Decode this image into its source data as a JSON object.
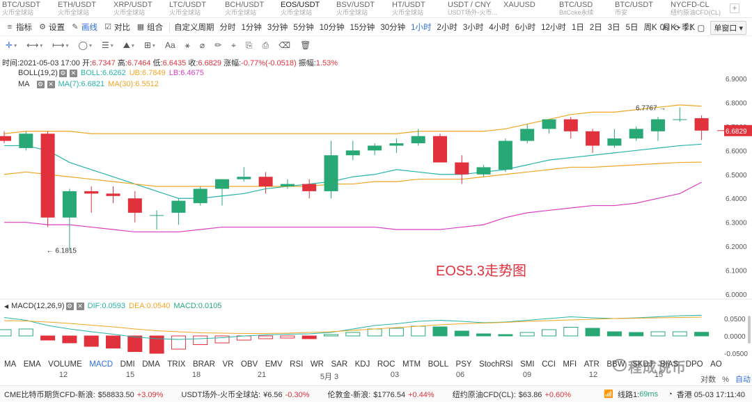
{
  "symbols": [
    {
      "name": "BTC/USDT",
      "sub": "火币全球站"
    },
    {
      "name": "ETH/USDT",
      "sub": "火币全球站"
    },
    {
      "name": "XRP/USDT",
      "sub": "火币全球站"
    },
    {
      "name": "LTC/USDT",
      "sub": "火币全球站"
    },
    {
      "name": "BCH/USDT",
      "sub": "火币全球站"
    },
    {
      "name": "EOS/USDT",
      "sub": "火币全球站",
      "active": true
    },
    {
      "name": "BSV/USDT",
      "sub": "火币全球站"
    },
    {
      "name": "HT/USDT",
      "sub": "火币全球站"
    },
    {
      "name": "USDT / CNY",
      "sub": "USDT场外-火币..."
    },
    {
      "name": "XAUUSD",
      "sub": ""
    },
    {
      "name": "BTC/USD",
      "sub": "BitCoke永续"
    },
    {
      "name": "BTC/USDT",
      "sub": "币安"
    },
    {
      "name": "NYCFD-CL",
      "sub": "纽约原油CFD(CL)"
    }
  ],
  "symbols_add": "+",
  "toolbar": {
    "tools": [
      {
        "icon": "≡",
        "label": "指标",
        "name": "indicators"
      },
      {
        "icon": "⚙",
        "label": "设置",
        "name": "settings"
      },
      {
        "icon": "✎",
        "label": "画线",
        "name": "draw",
        "active": true
      },
      {
        "icon": "☑",
        "label": "对比",
        "name": "compare"
      },
      {
        "icon": "▦",
        "label": "组合",
        "name": "combine"
      }
    ],
    "periods": [
      "自定义周期",
      "分时",
      "1分钟",
      "3分钟",
      "5分钟",
      "10分钟",
      "15分钟",
      "30分钟",
      "1小时",
      "2小时",
      "3小时",
      "4小时",
      "6小时",
      "12小时",
      "1日",
      "2日",
      "3日",
      "5日",
      "周K",
      "月K",
      "季K"
    ],
    "active_period": "1小时",
    "right_items": [
      "0s",
      "⟳",
      "⛶",
      "▢"
    ],
    "window_select": "单窗口 ▾"
  },
  "drawtools": [
    {
      "glyph": "✛",
      "name": "crosshair-icon",
      "active": true,
      "dropdown": true
    },
    {
      "glyph": "⟷",
      "name": "segment-icon",
      "dropdown": true
    },
    {
      "glyph": "⟼",
      "name": "ray-icon",
      "dropdown": true
    },
    {
      "glyph": "◯",
      "name": "ellipse-icon",
      "dropdown": true
    },
    {
      "glyph": "☰",
      "name": "channel-icon",
      "dropdown": true
    },
    {
      "glyph": "⛰",
      "name": "pattern-icon",
      "dropdown": true
    },
    {
      "glyph": "⊞",
      "name": "measure-icon",
      "dropdown": true
    },
    {
      "glyph": "Aa",
      "name": "text-icon"
    },
    {
      "glyph": "⚹",
      "name": "magnet-icon"
    },
    {
      "glyph": "⌀",
      "name": "link-icon"
    },
    {
      "glyph": "✏",
      "name": "brush-icon"
    },
    {
      "glyph": "⌖",
      "name": "lock-icon"
    },
    {
      "glyph": "⎘",
      "name": "copy-icon"
    },
    {
      "glyph": "⎙",
      "name": "paste-icon"
    },
    {
      "glyph": "⌫",
      "name": "erase-icon"
    },
    {
      "glyph": "🗑",
      "name": "trash-icon"
    }
  ],
  "ohlc": {
    "time": "时间:2021-05-03 17:00",
    "open_label": "开:",
    "open": "6.7347",
    "high_label": "高:",
    "high": "6.7464",
    "low_label": "低:",
    "low": "6.6435",
    "close_label": "收:",
    "close": "6.6829",
    "change_label": "涨幅:",
    "change": "-0.77%(-0.0518)",
    "amp_label": "振幅:",
    "amp": "1.53%"
  },
  "boll_legend": {
    "name": "BOLL(19,2)",
    "boll": "BOLL:6.6262",
    "ub": "UB:6.7849",
    "lb": "LB:6.4675"
  },
  "ma_legend": {
    "name": "MA",
    "ma7": "MA(7):6.6821",
    "ma30": "MA(30):6.5512"
  },
  "macd_legend": {
    "name": "MACD(12,26,9)",
    "dif": "DIF:0.0593",
    "dea": "DEA:0.0540",
    "macd": "MACD:0.0105"
  },
  "colors": {
    "up": "#27a875",
    "down": "#e0313c",
    "boll_mid": "#27b3a8",
    "boll_ub": "#f0a624",
    "boll_lb": "#dc3dc2",
    "ma7": "#27b3a8",
    "ma30": "#f0a624",
    "dif": "#27b3a8",
    "dea": "#f0a624",
    "accent": "#2d6ddb"
  },
  "chart_data": {
    "type": "candlestick",
    "title": "EOS5.3走势图",
    "ylim": [
      5.97,
      6.95
    ],
    "yticks": [
      6.0,
      6.1,
      6.2,
      6.3,
      6.4,
      6.5,
      6.6,
      6.7,
      6.8,
      6.9
    ],
    "ytick_labels": [
      "6.0000",
      "6.1000",
      "6.2000",
      "6.3000",
      "6.4000",
      "6.5000",
      "6.6000",
      "6.7000",
      "6.8000",
      "6.9000"
    ],
    "last_price": 6.6829,
    "last_price_label": "6.6829",
    "max_marker": {
      "index": 30,
      "value": 6.7767,
      "label": "6.7767 →"
    },
    "min_marker": {
      "index": 2,
      "value": 6.1815,
      "label": "← 6.1815"
    },
    "candles": [
      {
        "o": 6.66,
        "h": 6.68,
        "l": 6.63,
        "c": 6.64
      },
      {
        "o": 6.61,
        "h": 6.68,
        "l": 6.6,
        "c": 6.67
      },
      {
        "o": 6.67,
        "h": 6.68,
        "l": 6.28,
        "c": 6.32
      },
      {
        "o": 6.32,
        "h": 6.44,
        "l": 6.18,
        "c": 6.43
      },
      {
        "o": 6.43,
        "h": 6.45,
        "l": 6.34,
        "c": 6.42
      },
      {
        "o": 6.42,
        "h": 6.45,
        "l": 6.38,
        "c": 6.41
      },
      {
        "o": 6.4,
        "h": 6.43,
        "l": 6.3,
        "c": 6.34
      },
      {
        "o": 6.33,
        "h": 6.35,
        "l": 6.27,
        "c": 6.33
      },
      {
        "o": 6.34,
        "h": 6.4,
        "l": 6.29,
        "c": 6.39
      },
      {
        "o": 6.38,
        "h": 6.45,
        "l": 6.37,
        "c": 6.44
      },
      {
        "o": 6.44,
        "h": 6.48,
        "l": 6.37,
        "c": 6.48
      },
      {
        "o": 6.48,
        "h": 6.53,
        "l": 6.47,
        "c": 6.49
      },
      {
        "o": 6.49,
        "h": 6.51,
        "l": 6.42,
        "c": 6.45
      },
      {
        "o": 6.45,
        "h": 6.48,
        "l": 6.44,
        "c": 6.46
      },
      {
        "o": 6.46,
        "h": 6.48,
        "l": 6.4,
        "c": 6.43
      },
      {
        "o": 6.43,
        "h": 6.64,
        "l": 6.4,
        "c": 6.58
      },
      {
        "o": 6.58,
        "h": 6.64,
        "l": 6.56,
        "c": 6.6
      },
      {
        "o": 6.6,
        "h": 6.63,
        "l": 6.58,
        "c": 6.62
      },
      {
        "o": 6.62,
        "h": 6.65,
        "l": 6.59,
        "c": 6.63
      },
      {
        "o": 6.63,
        "h": 6.69,
        "l": 6.62,
        "c": 6.66
      },
      {
        "o": 6.66,
        "h": 6.67,
        "l": 6.55,
        "c": 6.55
      },
      {
        "o": 6.55,
        "h": 6.58,
        "l": 6.46,
        "c": 6.5
      },
      {
        "o": 6.5,
        "h": 6.54,
        "l": 6.49,
        "c": 6.53
      },
      {
        "o": 6.52,
        "h": 6.65,
        "l": 6.51,
        "c": 6.64
      },
      {
        "o": 6.64,
        "h": 6.71,
        "l": 6.63,
        "c": 6.69
      },
      {
        "o": 6.69,
        "h": 6.73,
        "l": 6.67,
        "c": 6.73
      },
      {
        "o": 6.73,
        "h": 6.74,
        "l": 6.65,
        "c": 6.68
      },
      {
        "o": 6.68,
        "h": 6.69,
        "l": 6.59,
        "c": 6.62
      },
      {
        "o": 6.62,
        "h": 6.69,
        "l": 6.61,
        "c": 6.65
      },
      {
        "o": 6.65,
        "h": 6.7,
        "l": 6.64,
        "c": 6.69
      },
      {
        "o": 6.68,
        "h": 6.74,
        "l": 6.64,
        "c": 6.73
      },
      {
        "o": 6.73,
        "h": 6.78,
        "l": 6.72,
        "c": 6.73
      },
      {
        "o": 6.7347,
        "h": 6.7464,
        "l": 6.6435,
        "c": 6.6829
      }
    ],
    "boll_upper": [
      6.67,
      6.68,
      6.68,
      6.68,
      6.67,
      6.67,
      6.67,
      6.67,
      6.67,
      6.67,
      6.67,
      6.67,
      6.67,
      6.67,
      6.67,
      6.67,
      6.67,
      6.67,
      6.67,
      6.68,
      6.68,
      6.68,
      6.68,
      6.69,
      6.71,
      6.73,
      6.75,
      6.76,
      6.76,
      6.77,
      6.78,
      6.79,
      6.785
    ],
    "boll_lower": [
      6.3,
      6.3,
      6.29,
      6.29,
      6.28,
      6.27,
      6.26,
      6.26,
      6.26,
      6.27,
      6.28,
      6.28,
      6.28,
      6.28,
      6.28,
      6.28,
      6.28,
      6.28,
      6.27,
      6.27,
      6.27,
      6.28,
      6.29,
      6.32,
      6.34,
      6.35,
      6.36,
      6.37,
      6.37,
      6.38,
      6.4,
      6.42,
      6.4675
    ],
    "boll_mid": [
      6.62,
      6.62,
      6.6,
      6.55,
      6.52,
      6.49,
      6.46,
      6.43,
      6.4,
      6.4,
      6.41,
      6.42,
      6.44,
      6.45,
      6.46,
      6.47,
      6.49,
      6.5,
      6.52,
      6.51,
      6.5,
      6.5,
      6.51,
      6.52,
      6.54,
      6.56,
      6.57,
      6.58,
      6.59,
      6.6,
      6.61,
      6.62,
      6.6262
    ],
    "ma30": [
      6.5,
      6.51,
      6.5,
      6.49,
      6.48,
      6.47,
      6.46,
      6.45,
      6.45,
      6.45,
      6.45,
      6.45,
      6.45,
      6.45,
      6.45,
      6.46,
      6.46,
      6.47,
      6.47,
      6.48,
      6.48,
      6.48,
      6.49,
      6.5,
      6.51,
      6.52,
      6.53,
      6.53,
      6.535,
      6.54,
      6.545,
      6.55,
      6.5512
    ],
    "macd_ylim": [
      -0.075,
      0.075
    ],
    "macd_yticks": [
      -0.05,
      0.0,
      0.05
    ],
    "macd_ytick_labels": [
      "-0.0500",
      "0.0000",
      "0.0500"
    ],
    "dif": [
      0.053,
      0.045,
      0.03,
      0.02,
      0.012,
      0.005,
      -0.003,
      -0.008,
      -0.01,
      -0.008,
      -0.005,
      0.0,
      0.003,
      0.005,
      0.006,
      0.01,
      0.02,
      0.03,
      0.035,
      0.042,
      0.045,
      0.042,
      0.038,
      0.04,
      0.045,
      0.05,
      0.055,
      0.052,
      0.05,
      0.052,
      0.055,
      0.058,
      0.0593
    ],
    "dea": [
      0.044,
      0.043,
      0.04,
      0.036,
      0.031,
      0.026,
      0.02,
      0.015,
      0.012,
      0.009,
      0.008,
      0.007,
      0.007,
      0.008,
      0.01,
      0.012,
      0.016,
      0.02,
      0.024,
      0.028,
      0.032,
      0.035,
      0.037,
      0.039,
      0.042,
      0.044,
      0.046,
      0.048,
      0.05,
      0.051,
      0.052,
      0.053,
      0.054
    ],
    "macd_hist": [
      0.018,
      0.02,
      -0.012,
      -0.02,
      -0.03,
      -0.035,
      -0.045,
      -0.05,
      -0.038,
      -0.025,
      -0.02,
      -0.012,
      -0.008,
      -0.006,
      -0.008,
      0.004,
      0.01,
      0.02,
      0.022,
      0.028,
      0.026,
      0.014,
      0.006,
      0.004,
      0.01,
      0.018,
      0.025,
      0.022,
      0.012,
      0.01,
      0.012,
      0.012,
      0.0105
    ]
  },
  "indicators": [
    "MA",
    "EMA",
    "VOLUME",
    "MACD",
    "DMI",
    "DMA",
    "TRIX",
    "BRAR",
    "VR",
    "OBV",
    "EMV",
    "RSI",
    "WR",
    "SAR",
    "KDJ",
    "ROC",
    "MTM",
    "BOLL",
    "PSY",
    "StochRSI",
    "SMI",
    "CCI",
    "MFI",
    "ATR",
    "BBW",
    "SKDJ",
    "BIAS",
    "DPO",
    "AO"
  ],
  "active_indicator": "MACD",
  "x_labels": [
    "12",
    "15",
    "18",
    "21",
    "5月 3",
    "03",
    "06",
    "09",
    "12",
    "15"
  ],
  "x_options": {
    "log": "对数",
    "pct": "%",
    "auto": "自动"
  },
  "ticker": [
    {
      "name": "CME比特币期货CFD-新浪:",
      "value": "$58833.50",
      "change": "+3.09%"
    },
    {
      "name": "USDT场外-火币全球站:",
      "value": "¥6.56",
      "change": "-0.30%"
    },
    {
      "name": "伦敦金-新浪:",
      "value": "$1776.54",
      "change": "+0.44%"
    },
    {
      "name": "纽约原油CFD(CL):",
      "value": "$63.86",
      "change": "+0.60%"
    }
  ],
  "status": {
    "line": "线路1:",
    "latency": "69ms",
    "location": "香港 05-03 17:11:40"
  },
  "watermark": "程成说币"
}
